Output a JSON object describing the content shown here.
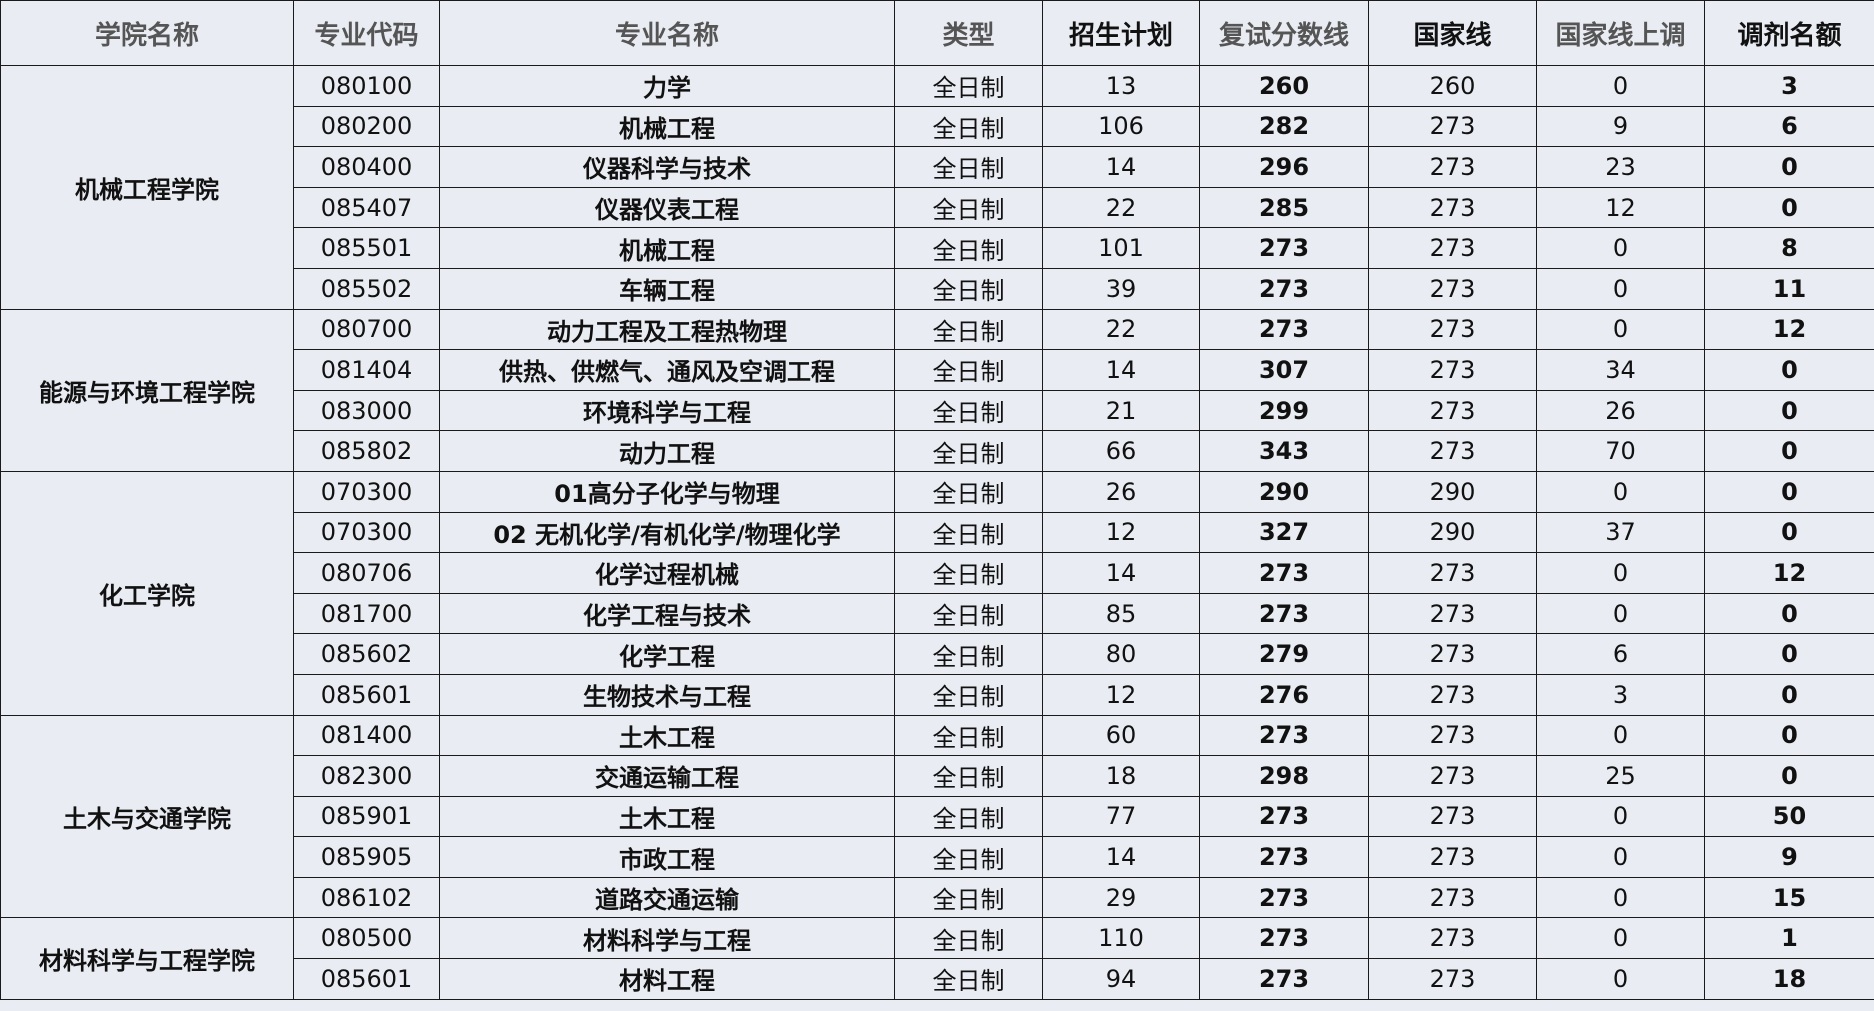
{
  "headers": [
    {
      "label": "学院名称",
      "muted": true
    },
    {
      "label": "专业代码",
      "muted": true
    },
    {
      "label": "专业名称",
      "muted": true
    },
    {
      "label": "类型",
      "muted": true
    },
    {
      "label": "招生计划",
      "muted": false
    },
    {
      "label": "复试分数线",
      "muted": true
    },
    {
      "label": "国家线",
      "muted": false
    },
    {
      "label": "国家线上调",
      "muted": true
    },
    {
      "label": "调剂名额",
      "muted": false
    }
  ],
  "colleges": [
    {
      "name": "机械工程学院",
      "rows": [
        [
          "080100",
          "力学",
          "全日制",
          "13",
          "260",
          "260",
          "0",
          "3"
        ],
        [
          "080200",
          "机械工程",
          "全日制",
          "106",
          "282",
          "273",
          "9",
          "6"
        ],
        [
          "080400",
          "仪器科学与技术",
          "全日制",
          "14",
          "296",
          "273",
          "23",
          "0"
        ],
        [
          "085407",
          "仪器仪表工程",
          "全日制",
          "22",
          "285",
          "273",
          "12",
          "0"
        ],
        [
          "085501",
          "机械工程",
          "全日制",
          "101",
          "273",
          "273",
          "0",
          "8"
        ],
        [
          "085502",
          "车辆工程",
          "全日制",
          "39",
          "273",
          "273",
          "0",
          "11"
        ]
      ]
    },
    {
      "name": "能源与环境工程学院",
      "rows": [
        [
          "080700",
          "动力工程及工程热物理",
          "全日制",
          "22",
          "273",
          "273",
          "0",
          "12"
        ],
        [
          "081404",
          "供热、供燃气、通风及空调工程",
          "全日制",
          "14",
          "307",
          "273",
          "34",
          "0"
        ],
        [
          "083000",
          "环境科学与工程",
          "全日制",
          "21",
          "299",
          "273",
          "26",
          "0"
        ],
        [
          "085802",
          "动力工程",
          "全日制",
          "66",
          "343",
          "273",
          "70",
          "0"
        ]
      ]
    },
    {
      "name": "化工学院",
      "rows": [
        [
          "070300",
          "01高分子化学与物理",
          "全日制",
          "26",
          "290",
          "290",
          "0",
          "0"
        ],
        [
          "070300",
          "02 无机化学/有机化学/物理化学",
          "全日制",
          "12",
          "327",
          "290",
          "37",
          "0"
        ],
        [
          "080706",
          "化学过程机械",
          "全日制",
          "14",
          "273",
          "273",
          "0",
          "12"
        ],
        [
          "081700",
          "化学工程与技术",
          "全日制",
          "85",
          "273",
          "273",
          "0",
          "0"
        ],
        [
          "085602",
          "化学工程",
          "全日制",
          "80",
          "279",
          "273",
          "6",
          "0"
        ],
        [
          "085601",
          "生物技术与工程",
          "全日制",
          "12",
          "276",
          "273",
          "3",
          "0"
        ]
      ]
    },
    {
      "name": "土木与交通学院",
      "rows": [
        [
          "081400",
          "土木工程",
          "全日制",
          "60",
          "273",
          "273",
          "0",
          "0"
        ],
        [
          "082300",
          "交通运输工程",
          "全日制",
          "18",
          "298",
          "273",
          "25",
          "0"
        ],
        [
          "085901",
          "土木工程",
          "全日制",
          "77",
          "273",
          "273",
          "0",
          "50"
        ],
        [
          "085905",
          "市政工程",
          "全日制",
          "14",
          "273",
          "273",
          "0",
          "9"
        ],
        [
          "086102",
          "道路交通运输",
          "全日制",
          "29",
          "273",
          "273",
          "0",
          "15"
        ]
      ]
    },
    {
      "name": "材料科学与工程学院",
      "rows": [
        [
          "080500",
          "材料科学与工程",
          "全日制",
          "110",
          "273",
          "273",
          "0",
          "1"
        ],
        [
          "085601",
          "材料工程",
          "全日制",
          "94",
          "273",
          "273",
          "0",
          "18"
        ]
      ]
    }
  ]
}
